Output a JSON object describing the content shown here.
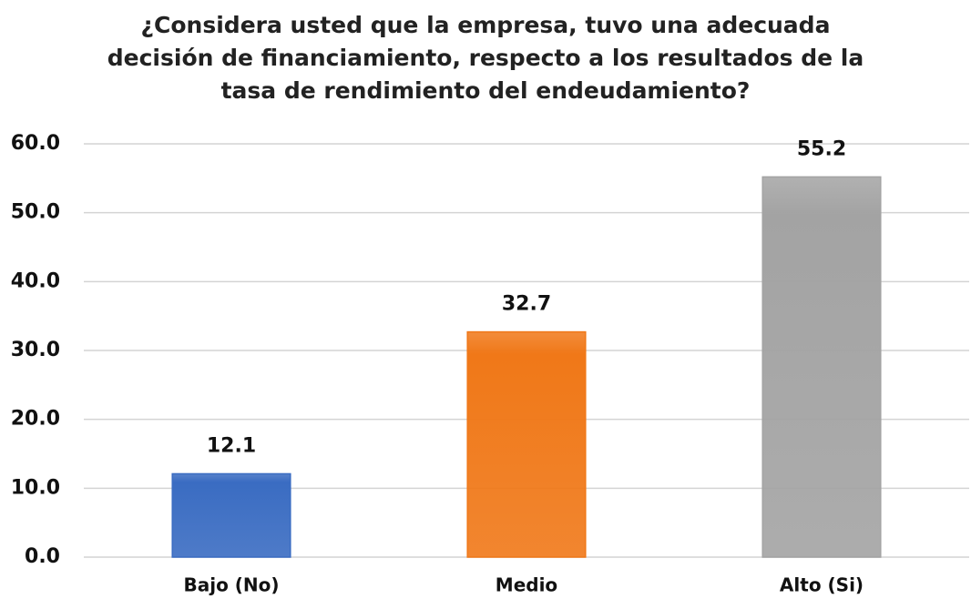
{
  "chart_data": {
    "type": "bar",
    "title": "¿Considera usted que la empresa, tuvo una adecuada decisión de financiamiento, respecto a los resultados de la tasa de rendimiento del endeudamiento?",
    "categories": [
      "Bajo (No)",
      "Medio",
      "Alto (Si)"
    ],
    "values": [
      12.1,
      32.7,
      55.2
    ],
    "colors": [
      "#3a6cc2",
      "#f07818",
      "#a3a3a3"
    ],
    "ylim": [
      0,
      60
    ],
    "yticks": [
      {
        "value": 0,
        "label": "0.0"
      },
      {
        "value": 10,
        "label": "10.0"
      },
      {
        "value": 20,
        "label": "20.0"
      },
      {
        "value": 30,
        "label": "30.0"
      },
      {
        "value": 40,
        "label": "40.0"
      },
      {
        "value": 50,
        "label": "50.0"
      },
      {
        "value": 60,
        "label": "60.0"
      }
    ],
    "grid": true
  }
}
